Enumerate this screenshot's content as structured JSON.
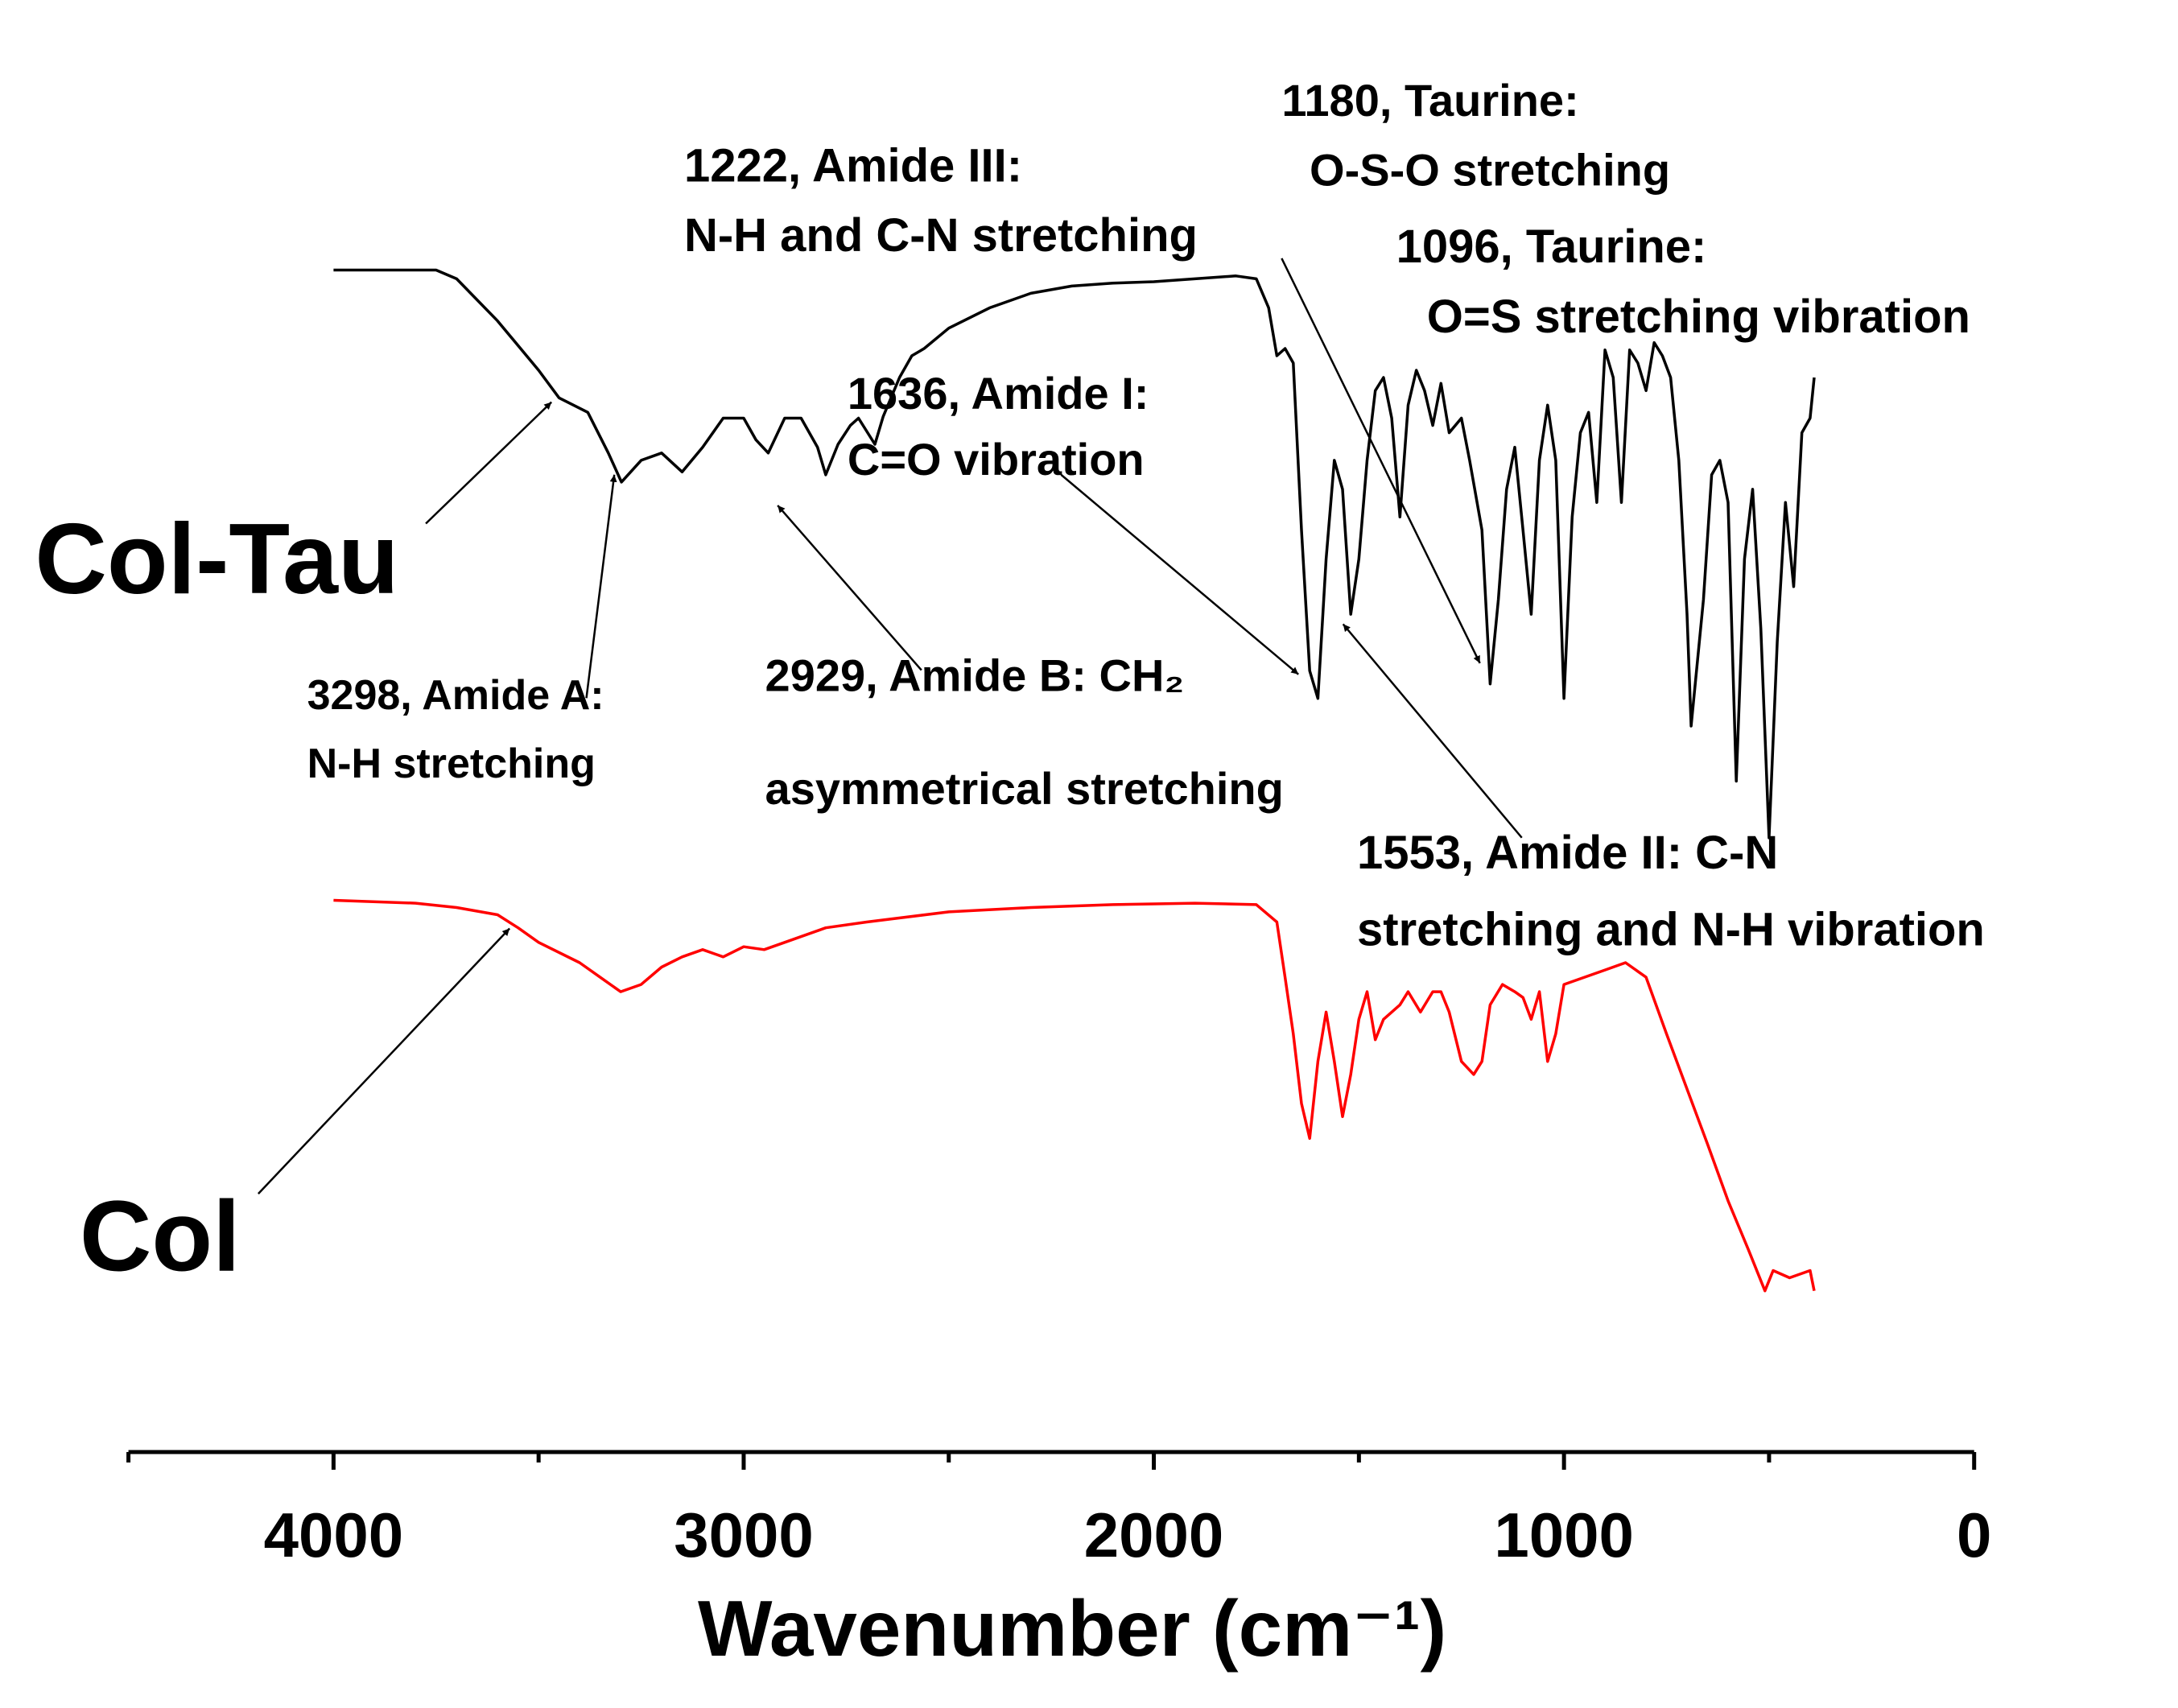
{
  "chart_data": {
    "type": "line",
    "x_label": "Wavenumber (cm⁻¹)",
    "xlim": [
      4500,
      0
    ],
    "xticks": [
      4000,
      3000,
      2000,
      1000,
      0
    ],
    "xminorticks": [
      4500,
      3500,
      2500,
      1500,
      500
    ],
    "ylim": [
      0,
      100
    ],
    "series": [
      {
        "name": "Col-Tau",
        "color": "#000000",
        "x": [
          4000,
          3750,
          3700,
          3600,
          3500,
          3450,
          3380,
          3330,
          3298,
          3250,
          3200,
          3150,
          3100,
          3050,
          3000,
          2970,
          2940,
          2900,
          2860,
          2820,
          2800,
          2770,
          2740,
          2720,
          2680,
          2660,
          2620,
          2590,
          2560,
          2500,
          2400,
          2300,
          2200,
          2100,
          2000,
          1900,
          1800,
          1750,
          1720,
          1700,
          1680,
          1660,
          1640,
          1620,
          1600,
          1580,
          1560,
          1540,
          1520,
          1500,
          1480,
          1460,
          1440,
          1420,
          1400,
          1380,
          1360,
          1340,
          1320,
          1300,
          1280,
          1250,
          1230,
          1200,
          1180,
          1160,
          1140,
          1120,
          1100,
          1080,
          1060,
          1040,
          1020,
          1000,
          980,
          960,
          940,
          920,
          900,
          880,
          860,
          840,
          820,
          800,
          780,
          760,
          740,
          720,
          700,
          690,
          660,
          640,
          620,
          600,
          580,
          560,
          540,
          520,
          500,
          480,
          460,
          440,
          420,
          400,
          390
        ],
        "values": [
          81.4,
          81.4,
          80.8,
          77.9,
          74.5,
          72.6,
          71.6,
          68.8,
          66.8,
          68.3,
          68.8,
          67.5,
          69.2,
          71.2,
          71.2,
          69.7,
          68.8,
          71.2,
          71.2,
          69.2,
          67.3,
          69.4,
          70.7,
          71.2,
          69.4,
          71.3,
          74.0,
          75.5,
          76.0,
          77.4,
          78.8,
          79.8,
          80.3,
          80.5,
          80.6,
          80.8,
          81.0,
          80.8,
          78.8,
          75.5,
          76.0,
          75.0,
          63.5,
          53.8,
          51.9,
          61.5,
          68.3,
          66.3,
          57.7,
          61.5,
          68.3,
          73.1,
          74.0,
          71.2,
          64.4,
          72.1,
          74.5,
          73.1,
          70.7,
          73.6,
          70.2,
          71.2,
          68.3,
          63.5,
          52.9,
          58.7,
          66.3,
          69.2,
          63.5,
          57.7,
          68.3,
          72.1,
          68.3,
          51.9,
          64.4,
          70.2,
          71.6,
          65.4,
          75.9,
          74.0,
          65.4,
          75.9,
          75.0,
          73.1,
          76.4,
          75.5,
          74.0,
          68.3,
          57.7,
          50.0,
          58.7,
          67.3,
          68.3,
          65.4,
          46.2,
          61.5,
          66.3,
          56.7,
          42.3,
          55.8,
          65.4,
          59.6,
          70.2,
          71.2,
          74.0
        ]
      },
      {
        "name": "Col",
        "color": "#ff0000",
        "x": [
          4000,
          3800,
          3700,
          3600,
          3550,
          3500,
          3400,
          3350,
          3300,
          3250,
          3200,
          3150,
          3100,
          3050,
          3000,
          2950,
          2900,
          2800,
          2700,
          2500,
          2300,
          2100,
          1900,
          1750,
          1700,
          1680,
          1660,
          1640,
          1620,
          1600,
          1580,
          1560,
          1540,
          1520,
          1500,
          1480,
          1460,
          1440,
          1400,
          1380,
          1350,
          1320,
          1300,
          1280,
          1250,
          1220,
          1200,
          1180,
          1150,
          1120,
          1100,
          1080,
          1060,
          1040,
          1020,
          1000,
          950,
          900,
          850,
          800,
          750,
          700,
          650,
          600,
          550,
          510,
          490,
          450,
          400,
          390
        ],
        "values": [
          38.0,
          37.8,
          37.5,
          37.0,
          36.1,
          35.1,
          33.7,
          32.7,
          31.7,
          32.2,
          33.4,
          34.1,
          34.6,
          34.1,
          34.8,
          34.6,
          35.1,
          36.1,
          36.5,
          37.2,
          37.5,
          37.7,
          37.8,
          37.7,
          36.5,
          32.7,
          28.8,
          24.0,
          21.6,
          26.9,
          30.3,
          26.9,
          23.1,
          26.0,
          29.8,
          31.7,
          28.4,
          29.8,
          30.8,
          31.7,
          30.3,
          31.7,
          31.7,
          30.3,
          26.9,
          26.0,
          26.9,
          30.8,
          32.2,
          31.7,
          31.3,
          29.8,
          31.7,
          26.9,
          28.8,
          32.2,
          32.7,
          33.2,
          33.7,
          32.7,
          28.8,
          25.0,
          21.2,
          17.3,
          13.9,
          11.1,
          12.5,
          12.0,
          12.5,
          11.1
        ]
      }
    ],
    "annotations": [
      {
        "lines": [
          "1180, Taurine:",
          "O-S-O stretching"
        ]
      },
      {
        "lines": [
          "1222, Amide III:",
          "N-H and C-N stretching"
        ]
      },
      {
        "lines": [
          "1096, Taurine:",
          "O=S stretching vibration"
        ]
      },
      {
        "lines": [
          "1636, Amide I:",
          "C=O vibration"
        ]
      },
      {
        "lines": [
          "3298, Amide A:",
          "N-H stretching"
        ]
      },
      {
        "lines": [
          "2929, Amide B: CH₂",
          "asymmetrical stretching"
        ]
      },
      {
        "lines": [
          "1553, Amide II: C-N",
          "stretching and N-H vibration"
        ]
      }
    ]
  }
}
